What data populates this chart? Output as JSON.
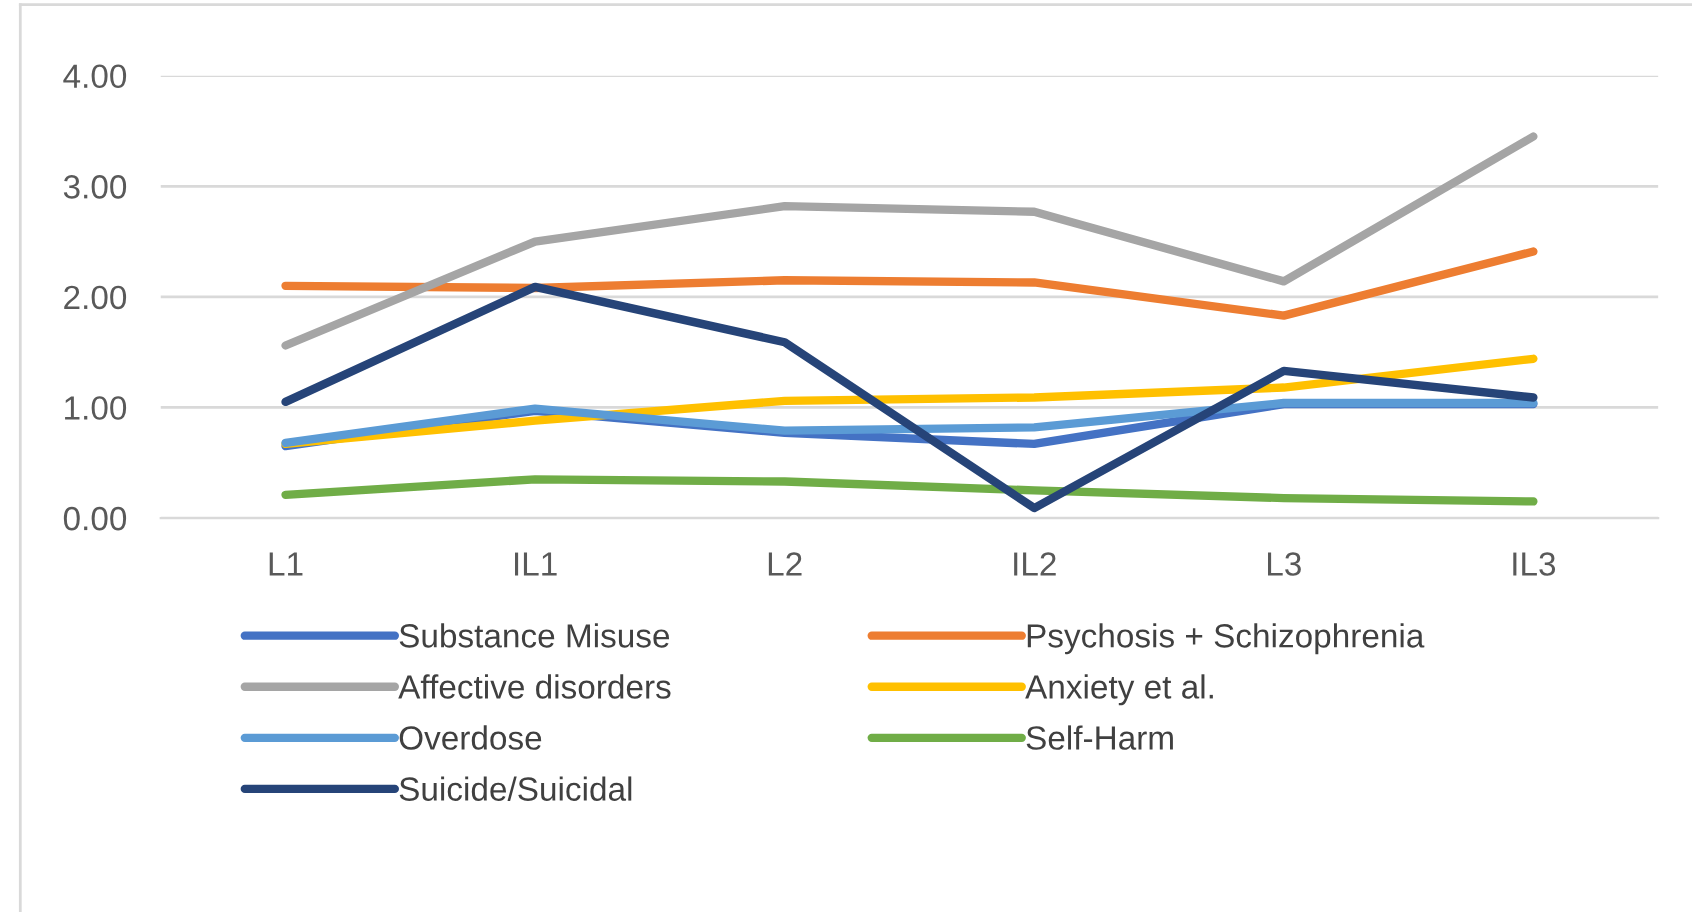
{
  "chart_data": {
    "type": "line",
    "categories": [
      "L1",
      "IL1",
      "L2",
      "IL2",
      "L3",
      "IL3"
    ],
    "series": [
      {
        "name": "Substance Misuse",
        "color": "#4472c4",
        "values": [
          0.65,
          0.97,
          0.77,
          0.67,
          1.03,
          1.03
        ]
      },
      {
        "name": "Psychosis + Schizophrenia",
        "color": "#ed7d31",
        "values": [
          2.1,
          2.08,
          2.15,
          2.13,
          1.83,
          2.41
        ]
      },
      {
        "name": "Affective disorders",
        "color": "#a5a5a5",
        "values": [
          1.56,
          2.5,
          2.82,
          2.77,
          2.14,
          3.45
        ]
      },
      {
        "name": "Anxiety et al.",
        "color": "#ffc000",
        "values": [
          0.67,
          0.88,
          1.06,
          1.09,
          1.18,
          1.44
        ]
      },
      {
        "name": "Overdose",
        "color": "#5b9bd5",
        "values": [
          0.68,
          0.99,
          0.79,
          0.82,
          1.04,
          1.04
        ]
      },
      {
        "name": "Self-Harm",
        "color": "#70ad47",
        "values": [
          0.21,
          0.35,
          0.33,
          0.25,
          0.18,
          0.15
        ]
      },
      {
        "name": "Suicide/Suicidal",
        "color": "#264478",
        "values": [
          1.05,
          2.09,
          1.59,
          0.09,
          1.33,
          1.09
        ]
      }
    ],
    "ylim": [
      0,
      4
    ],
    "yticks": [
      {
        "value": 0,
        "label": "0.00"
      },
      {
        "value": 1,
        "label": "1.00"
      },
      {
        "value": 2,
        "label": "2.00"
      },
      {
        "value": 3,
        "label": "3.00"
      },
      {
        "value": 4,
        "label": "4.00"
      }
    ],
    "grid": "y",
    "legend": "bottom",
    "marker": "none",
    "line_style": "solid"
  }
}
